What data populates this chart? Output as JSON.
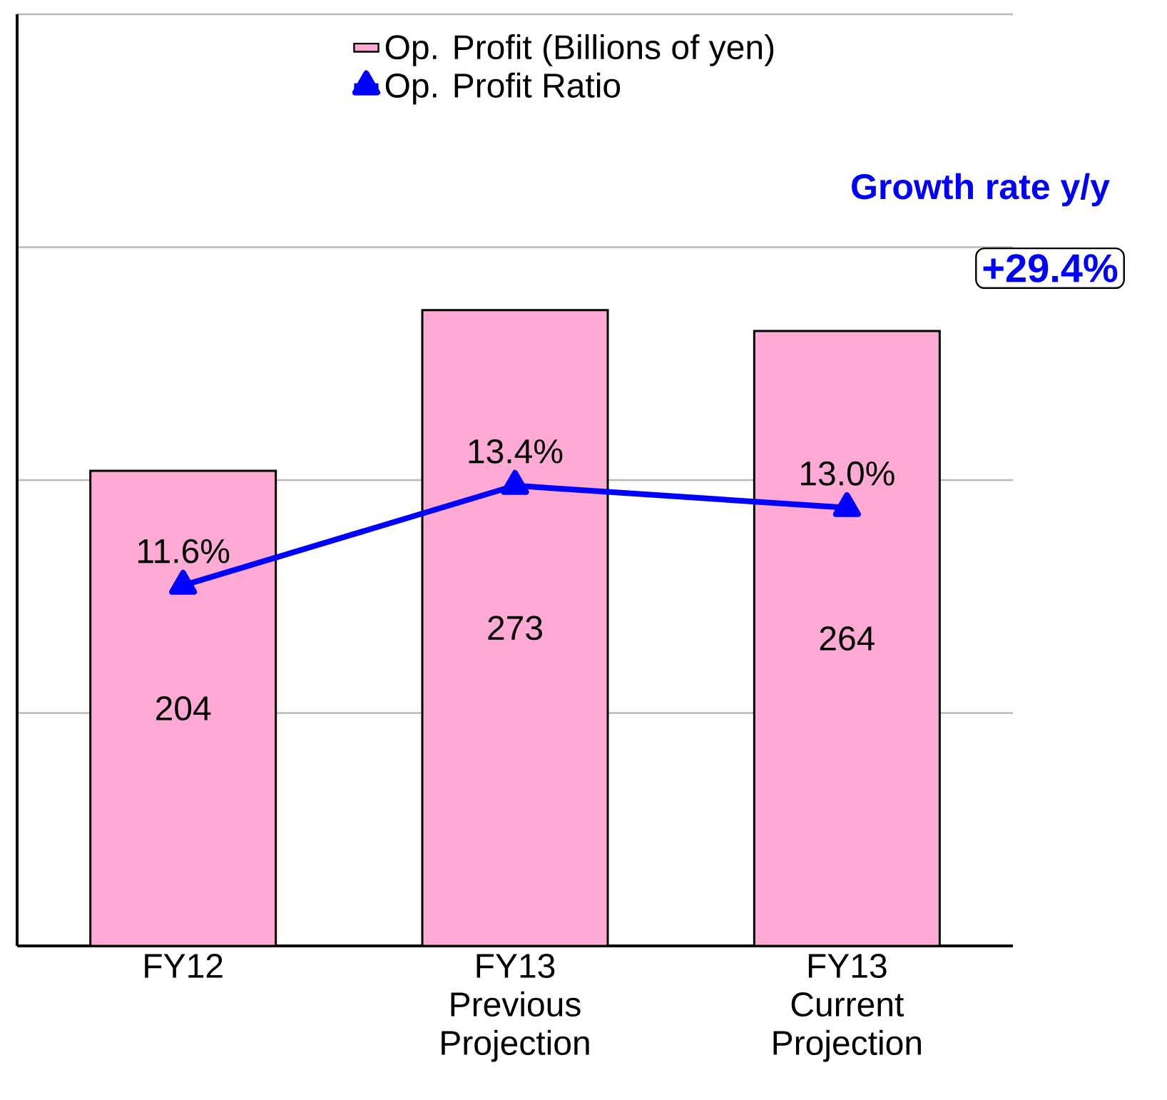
{
  "chart_data": {
    "type": "bar",
    "categories": [
      "FY12",
      "FY13 Previous Projection",
      "FY13 Current Projection"
    ],
    "series": [
      {
        "name": "Op. Profit (Billions of yen)",
        "type": "bar",
        "color": "#ffaad4",
        "values": [
          204,
          273,
          264
        ],
        "value_labels": [
          "204",
          "273",
          "264"
        ]
      },
      {
        "name": "Op. Profit Ratio",
        "type": "line",
        "axis": "y2",
        "color": "#0000ff",
        "values": [
          11.6,
          13.4,
          13.0
        ],
        "value_labels": [
          "11.6%",
          "13.4%",
          "13.0%"
        ]
      }
    ],
    "ylim": [
      0,
      400
    ],
    "yticks": [
      {
        "value": 100,
        "label": null
      },
      {
        "value": 200,
        "label": null
      },
      {
        "value": 300,
        "label": null
      },
      {
        "value": 400,
        "label": null
      }
    ],
    "y2lim": [
      5.1,
      21.9
    ],
    "tick_labels": "x",
    "grid": "y",
    "legend": "top",
    "marker": "triangle",
    "annotations": [
      "Growth rate y/y",
      "+29.4%"
    ]
  }
}
